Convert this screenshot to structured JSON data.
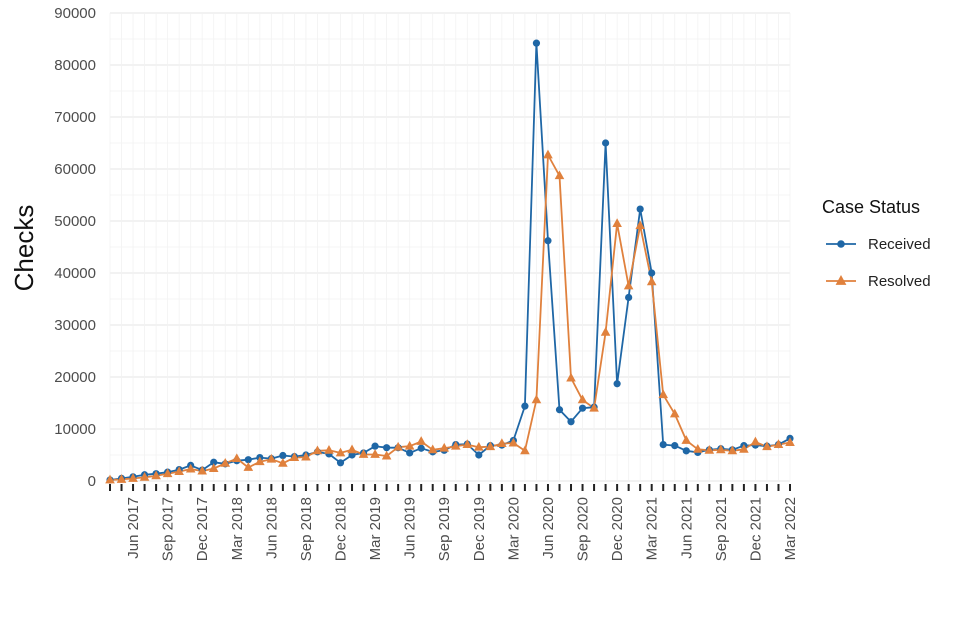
{
  "chart_data": {
    "type": "line",
    "title": "",
    "xlabel": "",
    "ylabel": "Checks",
    "ylim": [
      0,
      90000
    ],
    "yticks": [
      0,
      10000,
      20000,
      30000,
      40000,
      50000,
      60000,
      70000,
      80000,
      90000
    ],
    "x_start": "Apr 2017",
    "x_end": "Mar 2022",
    "x_tick_labels": [
      "Jun 2017",
      "Sep 2017",
      "Dec 2017",
      "Mar 2018",
      "Jun 2018",
      "Sep 2018",
      "Dec 2018",
      "Mar 2019",
      "Jun 2019",
      "Sep 2019",
      "Dec 2019",
      "Mar 2020",
      "Jun 2020",
      "Sep 2020",
      "Dec 2020",
      "Mar 2021",
      "Jun 2021",
      "Sep 2021",
      "Dec 2021",
      "Mar 2022"
    ],
    "x": [
      "Apr 2017",
      "May 2017",
      "Jun 2017",
      "Jul 2017",
      "Aug 2017",
      "Sep 2017",
      "Oct 2017",
      "Nov 2017",
      "Dec 2017",
      "Jan 2018",
      "Feb 2018",
      "Mar 2018",
      "Apr 2018",
      "May 2018",
      "Jun 2018",
      "Jul 2018",
      "Aug 2018",
      "Sep 2018",
      "Oct 2018",
      "Nov 2018",
      "Dec 2018",
      "Jan 2019",
      "Feb 2019",
      "Mar 2019",
      "Apr 2019",
      "May 2019",
      "Jun 2019",
      "Jul 2019",
      "Aug 2019",
      "Sep 2019",
      "Oct 2019",
      "Nov 2019",
      "Dec 2019",
      "Jan 2020",
      "Feb 2020",
      "Mar 2020",
      "Apr 2020",
      "May 2020",
      "Jun 2020",
      "Jul 2020",
      "Aug 2020",
      "Sep 2020",
      "Oct 2020",
      "Nov 2020",
      "Dec 2020",
      "Jan 2021",
      "Feb 2021",
      "Mar 2021",
      "Apr 2021",
      "May 2021",
      "Jun 2021",
      "Jul 2021",
      "Aug 2021",
      "Sep 2021",
      "Oct 2021",
      "Nov 2021",
      "Dec 2021",
      "Jan 2022",
      "Feb 2022",
      "Mar 2022"
    ],
    "grid": true,
    "legend": {
      "title": "Case Status",
      "position": "right"
    },
    "series": [
      {
        "name": "Received",
        "color": "#1f67a6",
        "marker": "circle",
        "values": [
          200,
          500,
          800,
          1200,
          1400,
          1700,
          2200,
          3000,
          2100,
          3600,
          3300,
          3900,
          4100,
          4500,
          4300,
          4900,
          4700,
          5000,
          5600,
          5200,
          3500,
          5000,
          5400,
          6700,
          6400,
          6400,
          5400,
          6300,
          5600,
          5900,
          7000,
          7100,
          5000,
          6800,
          6900,
          7800,
          14400,
          84200,
          46200,
          13700,
          11400,
          14000,
          14200,
          65000,
          18700,
          35300,
          52300,
          40000,
          7000,
          6800,
          5800,
          5500,
          6000,
          6200,
          6000,
          6800,
          6900,
          6700,
          7000,
          8200
        ]
      },
      {
        "name": "Resolved",
        "color": "#e0813d",
        "marker": "triangle",
        "values": [
          200,
          300,
          500,
          700,
          1000,
          1400,
          1800,
          2300,
          1900,
          2400,
          3400,
          4300,
          2600,
          3700,
          4200,
          3400,
          4500,
          4600,
          5800,
          5900,
          5400,
          6000,
          5100,
          5100,
          4800,
          6500,
          6700,
          7600,
          6000,
          6300,
          6700,
          7000,
          6500,
          6600,
          7200,
          7300,
          5800,
          15600,
          62700,
          58700,
          19800,
          15600,
          14000,
          28600,
          49500,
          37500,
          49100,
          38300,
          16600,
          12900,
          7800,
          6100,
          5900,
          6000,
          5800,
          6100,
          7500,
          6600,
          7000,
          7400
        ]
      }
    ]
  }
}
